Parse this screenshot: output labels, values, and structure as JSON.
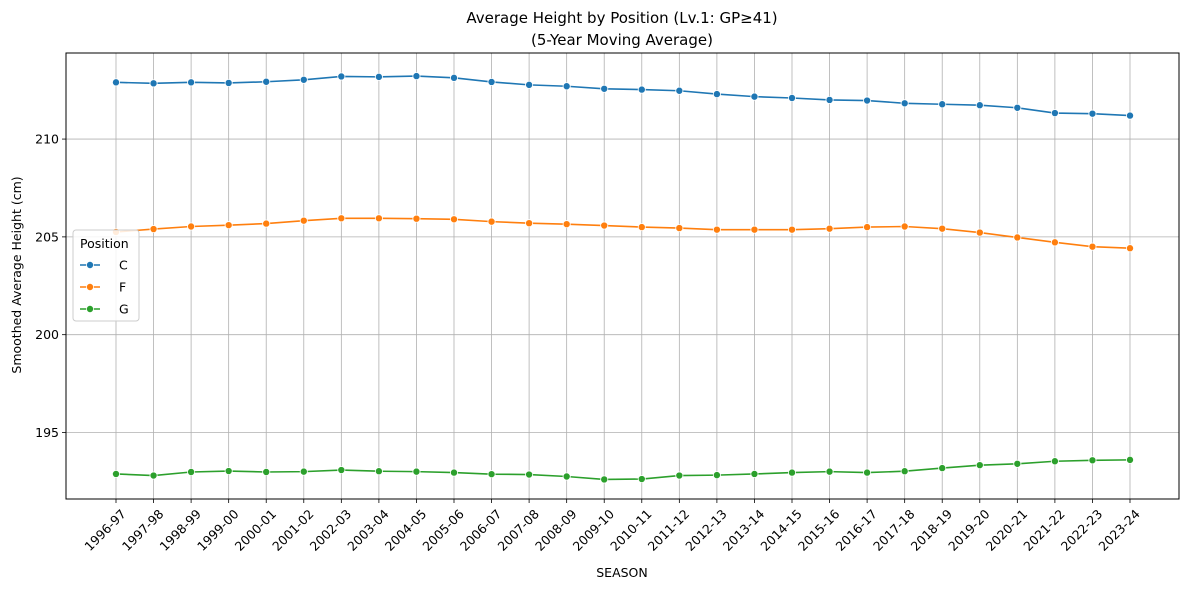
{
  "chart_data": {
    "type": "line",
    "title": "Average Height by Position (Lv.1: GP≥41)",
    "subtitle": "(5-Year Moving Average)",
    "xlabel": "SEASON",
    "ylabel": "Smoothed Average Height (cm)",
    "ylim": [
      191.6,
      214.4
    ],
    "yticks": [
      "195",
      "200",
      "205",
      "210"
    ],
    "grid": true,
    "legend": {
      "title": "Position",
      "placement": "center-left"
    },
    "categories": [
      "1996-97",
      "1997-98",
      "1998-99",
      "1999-00",
      "2000-01",
      "2001-02",
      "2002-03",
      "2003-04",
      "2004-05",
      "2005-06",
      "2006-07",
      "2007-08",
      "2008-09",
      "2009-10",
      "2010-11",
      "2011-12",
      "2012-13",
      "2013-14",
      "2014-15",
      "2015-16",
      "2016-17",
      "2017-18",
      "2018-19",
      "2019-20",
      "2020-21",
      "2021-22",
      "2022-23",
      "2023-24"
    ],
    "series": [
      {
        "name": "C",
        "color": "#1f77b4",
        "values": [
          212.9,
          212.85,
          212.9,
          212.87,
          212.93,
          213.03,
          213.2,
          213.18,
          213.22,
          213.13,
          212.92,
          212.77,
          212.7,
          212.57,
          212.53,
          212.47,
          212.3,
          212.17,
          212.1,
          212.0,
          211.97,
          211.83,
          211.78,
          211.73,
          211.6,
          211.33,
          211.3,
          211.2
        ]
      },
      {
        "name": "F",
        "color": "#ff7f0e",
        "values": [
          205.25,
          205.4,
          205.53,
          205.6,
          205.68,
          205.83,
          205.95,
          205.95,
          205.93,
          205.9,
          205.78,
          205.7,
          205.65,
          205.58,
          205.5,
          205.45,
          205.37,
          205.37,
          205.37,
          205.42,
          205.5,
          205.53,
          205.42,
          205.22,
          204.97,
          204.72,
          204.5,
          204.42
        ]
      },
      {
        "name": "G",
        "color": "#2ca02c",
        "values": [
          192.88,
          192.8,
          192.98,
          193.03,
          192.98,
          193.0,
          193.08,
          193.02,
          193.0,
          192.95,
          192.87,
          192.85,
          192.75,
          192.6,
          192.62,
          192.8,
          192.82,
          192.88,
          192.95,
          193.0,
          192.95,
          193.02,
          193.18,
          193.33,
          193.4,
          193.53,
          193.58,
          193.6
        ]
      }
    ]
  }
}
